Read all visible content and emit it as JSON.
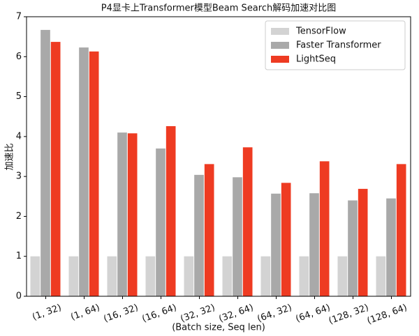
{
  "chart_data": {
    "type": "bar",
    "title": "P4显卡上Transformer模型Beam Search解码加速对比图",
    "xlabel": "(Batch size, Seq len)",
    "ylabel": "加速比",
    "categories": [
      "(1, 32)",
      "(1, 64)",
      "(16, 32)",
      "(16, 64)",
      "(32, 32)",
      "(32, 64)",
      "(64, 32)",
      "(64, 64)",
      "(128, 32)",
      "(128, 64)"
    ],
    "series": [
      {
        "name": "TensorFlow",
        "color": "#d3d3d3",
        "values": [
          1,
          1,
          1,
          1,
          1,
          1,
          1,
          1,
          1,
          1
        ]
      },
      {
        "name": "Faster Transformer",
        "color": "#a9a9a9",
        "values": [
          6.67,
          6.23,
          4.1,
          3.7,
          3.04,
          2.98,
          2.57,
          2.58,
          2.4,
          2.45
        ]
      },
      {
        "name": "LightSeq",
        "color": "#ee3b22",
        "values": [
          6.37,
          6.13,
          4.08,
          4.26,
          3.31,
          3.73,
          2.84,
          3.38,
          2.69,
          3.31
        ]
      }
    ],
    "ylim": [
      0,
      7
    ],
    "yticks": [
      0,
      1,
      2,
      3,
      4,
      5,
      6,
      7
    ],
    "legend": "upper right"
  }
}
